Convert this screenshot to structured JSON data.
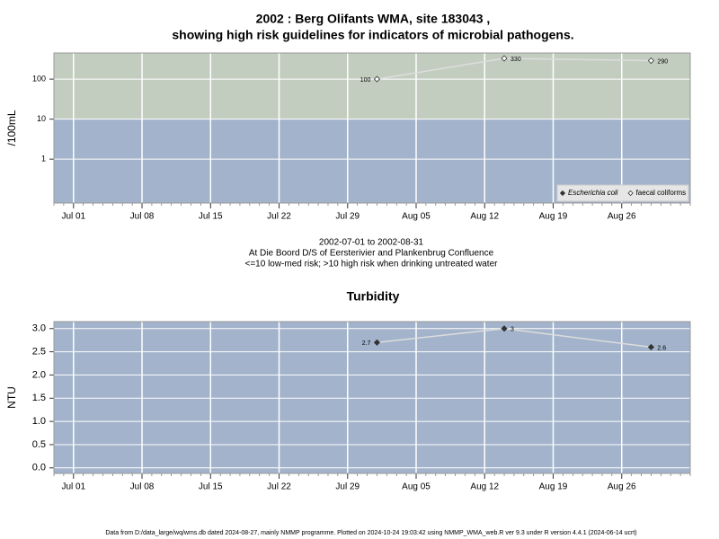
{
  "chart_data": [
    {
      "type": "line",
      "title": [
        "2002 : Berg Olifants WMA, site 183043 ,",
        "showing high risk guidelines for indicators of microbial pathogens."
      ],
      "ylabel": "/100mL",
      "log_y": true,
      "ylim": [
        0.08,
        450
      ],
      "yticks": [
        1,
        10,
        100
      ],
      "threshold": 10,
      "band_colors": {
        "above": "#c2cdc0",
        "below": "#a2b3cb"
      },
      "xlim": [
        "Jun 29",
        "Sep 02"
      ],
      "xticks": [
        "Jul 01",
        "Jul 08",
        "Jul 15",
        "Jul 22",
        "Jul 29",
        "Aug 05",
        "Aug 12",
        "Aug 19",
        "Aug 26"
      ],
      "x": [
        "Aug 01",
        "Aug 14",
        "Aug 29"
      ],
      "legend": "bottom-right",
      "grid": true,
      "series": [
        {
          "name": "Escherichia coli",
          "color": "#333333",
          "marker_fill": "#333333",
          "line_color": "#dddddd",
          "values": [
            null,
            null,
            null
          ]
        },
        {
          "name": "faecal coliforms",
          "color": "#333333",
          "marker_fill": "#ffffff",
          "line_color": "#dddddd",
          "values": [
            100,
            330,
            290
          ]
        }
      ]
    },
    {
      "type": "line",
      "title": [
        "Turbidity"
      ],
      "ylabel": "NTU",
      "log_y": false,
      "ylim": [
        -0.12,
        3.15
      ],
      "yticks": [
        {
          "value": 0,
          "label": "0.0"
        },
        {
          "value": 0.5,
          "label": "0.5"
        },
        {
          "value": 1,
          "label": "1.0"
        },
        {
          "value": 1.5,
          "label": "1.5"
        },
        {
          "value": 2,
          "label": "2.0"
        },
        {
          "value": 2.5,
          "label": "2.5"
        },
        {
          "value": 3,
          "label": "3.0"
        }
      ],
      "band_colors": {
        "below": "#a2b3cb"
      },
      "xlim": [
        "Jun 29",
        "Sep 02"
      ],
      "xticks": [
        "Jul 01",
        "Jul 08",
        "Jul 15",
        "Jul 22",
        "Jul 29",
        "Aug 05",
        "Aug 12",
        "Aug 19",
        "Aug 26"
      ],
      "x": [
        "Aug 01",
        "Aug 14",
        "Aug 29"
      ],
      "grid": true,
      "series": [
        {
          "color": "#333333",
          "marker_fill": "#333333",
          "line_color": "#dddddd",
          "values": [
            2.7,
            3,
            2.6
          ]
        }
      ]
    }
  ],
  "caption": [
    "2002-07-01 to 2002-08-31",
    "At Die Boord D/S of Eersterivier and Plankenbrug Confluence",
    "<=10 low-med risk; >10 high risk when drinking untreated water"
  ],
  "footer": "Data from D:/data_large/wq/wms.db dated 2024-08-27, mainly NMMP programme. Plotted on 2024-10-24 19:03:42 using NMMP_WMA_web.R ver 9.3 under R version 4.4.1 (2024-06-14 ucrt)"
}
